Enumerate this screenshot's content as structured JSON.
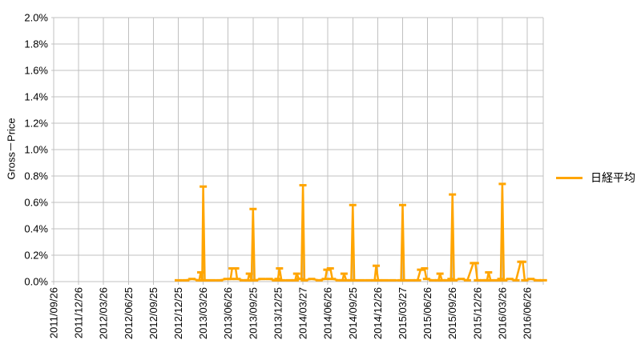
{
  "chart_data": {
    "type": "line",
    "title": "",
    "xlabel": "",
    "ylabel": "Gross－Price",
    "grid": true,
    "legend": {
      "label": "日経平均",
      "position": "right"
    },
    "series_color": "#FFA500",
    "grid_color": "#C0C0C0",
    "ylim": [
      0.0,
      2.0
    ],
    "y_tick_step": 0.2,
    "y_tick_labels": [
      "2.0%",
      "1.8%",
      "1.6%",
      "1.4%",
      "1.2%",
      "1.0%",
      "0.8%",
      "0.6%",
      "0.4%",
      "0.2%",
      "0.0%"
    ],
    "x_tick_labels": [
      "2011/09/26",
      "2011/12/26",
      "2012/03/26",
      "2012/06/25",
      "2012/09/25",
      "2012/12/25",
      "2013/03/26",
      "2013/06/26",
      "2013/09/25",
      "2013/12/25",
      "2014/03/27",
      "2014/06/26",
      "2014/09/25",
      "2014/12/26",
      "2015/03/27",
      "2015/06/26",
      "2015/09/26",
      "2015/12/26",
      "2016/03/26",
      "2016/06/26"
    ],
    "x_axis_note": "x values of data points are fractional category-gridline indices (0 = 2011/09/26, 19 = 2016/06/26); series starts at 2012/12/25",
    "series": [
      {
        "name": "日経平均",
        "marker": "dash",
        "y_unit": "percent",
        "points": [
          [
            5.0,
            0.01
          ],
          [
            5.3,
            0.01
          ],
          [
            5.55,
            0.02
          ],
          [
            5.84,
            0.01
          ],
          [
            5.9,
            0.07
          ],
          [
            5.96,
            0.01
          ],
          [
            6.0,
            0.72
          ],
          [
            6.06,
            0.01
          ],
          [
            6.35,
            0.01
          ],
          [
            6.65,
            0.01
          ],
          [
            6.95,
            0.02
          ],
          [
            7.1,
            0.02
          ],
          [
            7.16,
            0.1
          ],
          [
            7.3,
            0.1
          ],
          [
            7.36,
            0.02
          ],
          [
            7.6,
            0.01
          ],
          [
            7.79,
            0.01
          ],
          [
            7.85,
            0.06
          ],
          [
            7.94,
            0.01
          ],
          [
            8.0,
            0.55
          ],
          [
            8.06,
            0.01
          ],
          [
            8.35,
            0.02
          ],
          [
            8.65,
            0.02
          ],
          [
            8.9,
            0.01
          ],
          [
            9.0,
            0.02
          ],
          [
            9.06,
            0.1
          ],
          [
            9.14,
            0.01
          ],
          [
            9.45,
            0.01
          ],
          [
            9.69,
            0.01
          ],
          [
            9.75,
            0.06
          ],
          [
            9.84,
            0.02
          ],
          [
            9.94,
            0.02
          ],
          [
            10.0,
            0.73
          ],
          [
            10.06,
            0.01
          ],
          [
            10.35,
            0.02
          ],
          [
            10.65,
            0.01
          ],
          [
            10.9,
            0.02
          ],
          [
            10.96,
            0.09
          ],
          [
            11.1,
            0.1
          ],
          [
            11.18,
            0.02
          ],
          [
            11.45,
            0.01
          ],
          [
            11.59,
            0.01
          ],
          [
            11.65,
            0.06
          ],
          [
            11.74,
            0.01
          ],
          [
            11.94,
            0.01
          ],
          [
            12.0,
            0.58
          ],
          [
            12.06,
            0.01
          ],
          [
            12.35,
            0.01
          ],
          [
            12.65,
            0.01
          ],
          [
            12.88,
            0.01
          ],
          [
            12.94,
            0.12
          ],
          [
            13.02,
            0.01
          ],
          [
            13.3,
            0.01
          ],
          [
            13.6,
            0.01
          ],
          [
            13.94,
            0.01
          ],
          [
            14.0,
            0.58
          ],
          [
            14.06,
            0.01
          ],
          [
            14.35,
            0.01
          ],
          [
            14.6,
            0.01
          ],
          [
            14.72,
            0.09
          ],
          [
            14.88,
            0.1
          ],
          [
            14.96,
            0.02
          ],
          [
            15.2,
            0.01
          ],
          [
            15.44,
            0.01
          ],
          [
            15.5,
            0.06
          ],
          [
            15.58,
            0.01
          ],
          [
            15.8,
            0.01
          ],
          [
            15.94,
            0.02
          ],
          [
            16.0,
            0.66
          ],
          [
            16.06,
            0.01
          ],
          [
            16.35,
            0.02
          ],
          [
            16.6,
            0.01
          ],
          [
            16.84,
            0.14
          ],
          [
            16.92,
            0.14
          ],
          [
            17.0,
            0.01
          ],
          [
            17.25,
            0.01
          ],
          [
            17.39,
            0.01
          ],
          [
            17.45,
            0.07
          ],
          [
            17.53,
            0.01
          ],
          [
            17.8,
            0.01
          ],
          [
            17.94,
            0.02
          ],
          [
            18.0,
            0.74
          ],
          [
            18.06,
            0.01
          ],
          [
            18.3,
            0.02
          ],
          [
            18.55,
            0.01
          ],
          [
            18.74,
            0.15
          ],
          [
            18.82,
            0.15
          ],
          [
            18.9,
            0.01
          ],
          [
            19.15,
            0.02
          ],
          [
            19.4,
            0.01
          ],
          [
            19.65,
            0.01
          ]
        ]
      }
    ]
  }
}
